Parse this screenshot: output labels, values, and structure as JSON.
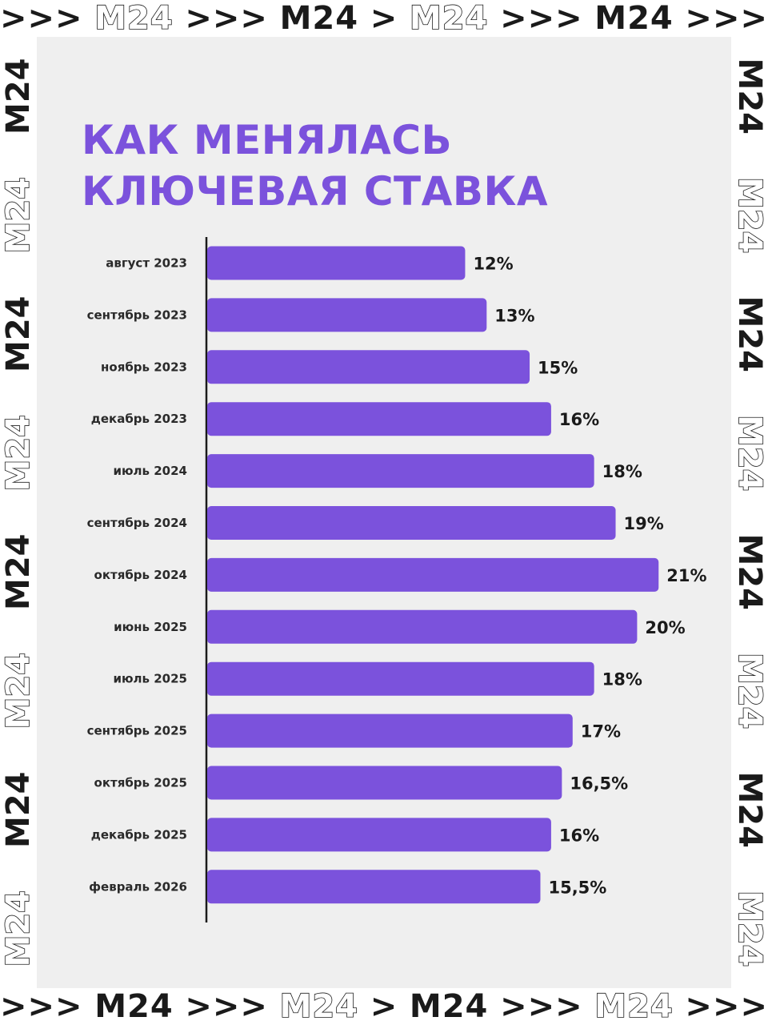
{
  "brand": {
    "logo_text": "M24",
    "separator_long": ">>>",
    "separator_short": ">"
  },
  "colors": {
    "accent": "#7b52dc",
    "panel_background": "#efefef",
    "text": "#1a1a1a"
  },
  "chart_data": {
    "type": "bar",
    "orientation": "horizontal",
    "title": "КАК МЕНЯЛАСЬ КЛЮЧЕВАЯ СТАВКА",
    "title_lines": [
      "КАК МЕНЯЛАСЬ",
      "КЛЮЧЕВАЯ СТАВКА"
    ],
    "categories": [
      "август 2023",
      "сентябрь 2023",
      "ноябрь 2023",
      "декабрь 2023",
      "июль 2024",
      "сентябрь 2024",
      "октябрь 2024",
      "июнь 2025",
      "июль 2025",
      "сентябрь 2025",
      "октябрь 2025",
      "декабрь 2025",
      "февраль 2026"
    ],
    "values": [
      12,
      13,
      15,
      16,
      18,
      19,
      21,
      20,
      18,
      17,
      16.5,
      16,
      15.5
    ],
    "value_labels": [
      "12%",
      "13%",
      "15%",
      "16%",
      "18%",
      "19%",
      "21%",
      "20%",
      "18%",
      "17%",
      "16,5%",
      "16%",
      "15,5%"
    ],
    "unit": "%",
    "bar_color": "#7b52dc",
    "grid": false,
    "legend": "none"
  }
}
